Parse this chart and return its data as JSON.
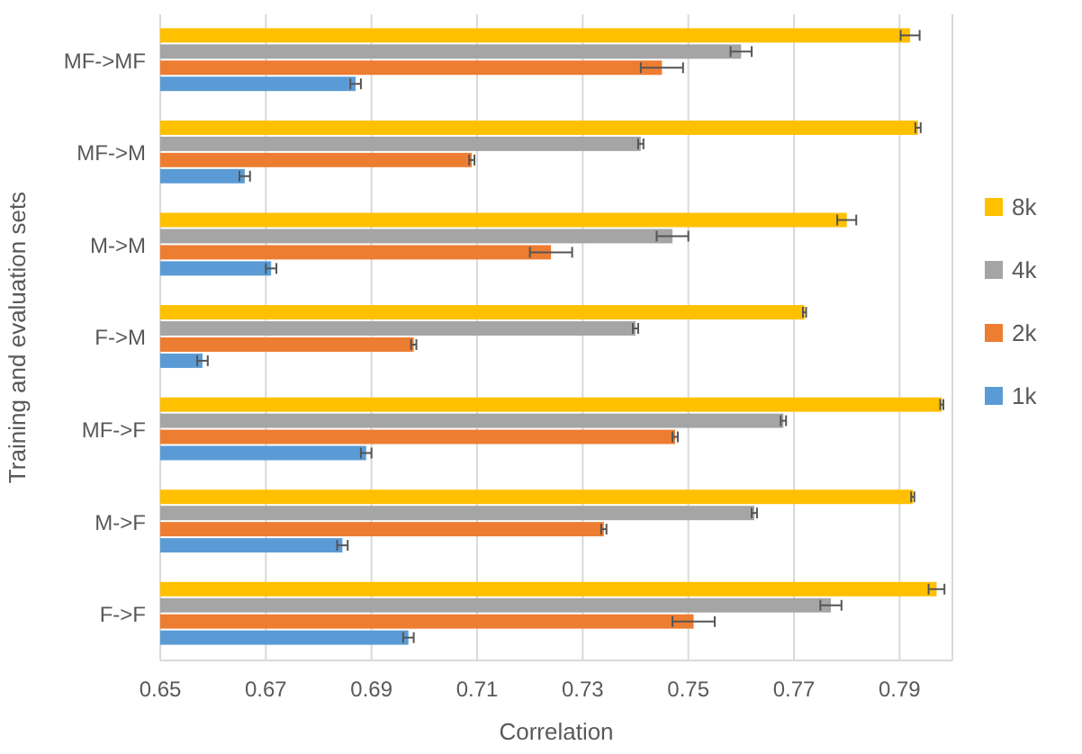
{
  "chart_data": {
    "type": "bar",
    "orientation": "horizontal",
    "xlabel": "Correlation",
    "ylabel": "Training and evaluation sets",
    "categories": [
      "MF->MF",
      "MF->M",
      "M->M",
      "F->M",
      "MF->F",
      "M->F",
      "F->F"
    ],
    "series": [
      {
        "name": "8k",
        "color": "#ffc000",
        "values": [
          0.792,
          0.7935,
          0.78,
          0.772,
          0.798,
          0.7925,
          0.797
        ],
        "errors": [
          0.0018,
          0.0005,
          0.0018,
          0.0003,
          0.0003,
          0.0003,
          0.0015
        ]
      },
      {
        "name": "4k",
        "color": "#a5a5a5",
        "values": [
          0.76,
          0.741,
          0.747,
          0.74,
          0.768,
          0.7625,
          0.777
        ],
        "errors": [
          0.002,
          0.0005,
          0.003,
          0.0005,
          0.0005,
          0.0005,
          0.002
        ]
      },
      {
        "name": "2k",
        "color": "#ed7d31",
        "values": [
          0.745,
          0.709,
          0.724,
          0.698,
          0.7475,
          0.734,
          0.751
        ],
        "errors": [
          0.004,
          0.0005,
          0.004,
          0.0005,
          0.0005,
          0.0005,
          0.004
        ]
      },
      {
        "name": "1k",
        "color": "#5b9bd5",
        "values": [
          0.687,
          0.666,
          0.671,
          0.658,
          0.689,
          0.6845,
          0.697
        ],
        "errors": [
          0.001,
          0.001,
          0.001,
          0.001,
          0.001,
          0.001,
          0.001
        ]
      }
    ],
    "xlim": [
      0.65,
      0.8
    ],
    "xticks": [
      0.65,
      0.67,
      0.69,
      0.71,
      0.73,
      0.75,
      0.77,
      0.79
    ],
    "grid": "x",
    "legend": "right"
  }
}
